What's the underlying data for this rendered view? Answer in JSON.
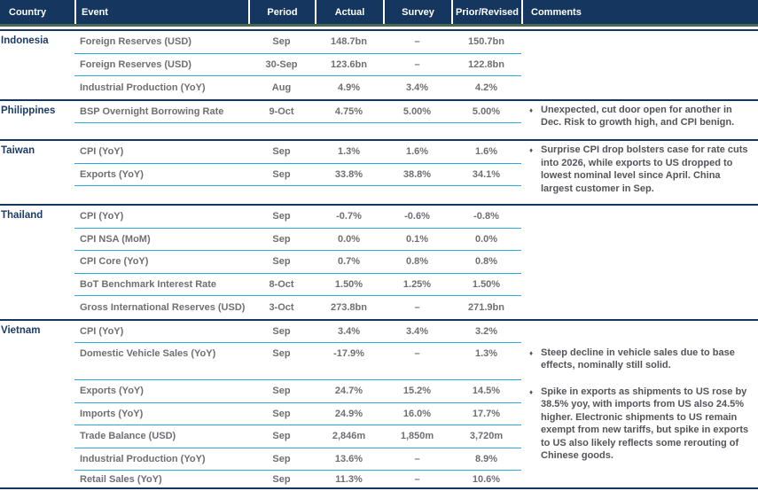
{
  "header": {
    "columns": [
      "Country",
      "Event",
      "Period",
      "Actual",
      "Survey",
      "Prior/Revised",
      "Comments"
    ]
  },
  "bullet": "♦",
  "colors": {
    "header_bg": "#14365f",
    "accent_green": "#486852",
    "row_rule_cyan": "#29abe2",
    "country_text": "#1d3c68",
    "value_text": "#6f6f73",
    "comment_text": "#54545a"
  },
  "sections": [
    {
      "country": "Indonesia",
      "rows": [
        {
          "event": "Foreign Reserves (USD)",
          "period": "Sep",
          "actual": "148.7bn",
          "survey": "–",
          "prior": "150.7bn"
        },
        {
          "event": "Foreign Reserves (USD)",
          "period": "30-Sep",
          "actual": "123.6bn",
          "survey": "–",
          "prior": "122.8bn"
        },
        {
          "event": "Industrial Production (YoY)",
          "period": "Aug",
          "actual": "4.9%",
          "survey": "3.4%",
          "prior": "4.2%"
        }
      ],
      "comments": []
    },
    {
      "country": "Philippines",
      "rows": [
        {
          "event": "BSP Overnight Borrowing Rate",
          "period": "9-Oct",
          "actual": "4.75%",
          "survey": "5.00%",
          "prior": "5.00%"
        }
      ],
      "comments": [
        {
          "text": "Unexpected, cut door open for another in Dec. Risk to growth high, and CPI benign."
        }
      ]
    },
    {
      "country": "Taiwan",
      "rows": [
        {
          "event": "CPI (YoY)",
          "period": "Sep",
          "actual": "1.3%",
          "survey": "1.6%",
          "prior": "1.6%"
        },
        {
          "event": "Exports (YoY)",
          "period": "Sep",
          "actual": "33.8%",
          "survey": "38.8%",
          "prior": "34.1%"
        }
      ],
      "comments": [
        {
          "text": "Surprise CPI drop bolsters case for rate cuts into 2026, while exports to US dropped to lowest nominal level since April. China largest customer in Sep."
        }
      ]
    },
    {
      "country": "Thailand",
      "rows": [
        {
          "event": "CPI (YoY)",
          "period": "Sep",
          "actual": "-0.7%",
          "survey": "-0.6%",
          "prior": "-0.8%"
        },
        {
          "event": "CPI NSA (MoM)",
          "period": "Sep",
          "actual": "0.0%",
          "survey": "0.1%",
          "prior": "0.0%"
        },
        {
          "event": "CPI Core (YoY)",
          "period": "Sep",
          "actual": "0.7%",
          "survey": "0.8%",
          "prior": "0.8%"
        },
        {
          "event": "BoT Benchmark Interest Rate",
          "period": "8-Oct",
          "actual": "1.50%",
          "survey": "1.25%",
          "prior": "1.50%"
        },
        {
          "event": "Gross International Reserves (USD)",
          "period": "3-Oct",
          "actual": "273.8bn",
          "survey": "–",
          "prior": "271.9bn"
        }
      ],
      "comments": []
    },
    {
      "country": "Vietnam",
      "rows": [
        {
          "event": "CPI (YoY)",
          "period": "Sep",
          "actual": "3.4%",
          "survey": "3.4%",
          "prior": "3.2%"
        },
        {
          "event": "Domestic Vehicle Sales (YoY)",
          "period": "Sep",
          "actual": "-17.9%",
          "survey": "–",
          "prior": "1.3%"
        },
        {
          "event": "Exports (YoY)",
          "period": "Sep",
          "actual": "24.7%",
          "survey": "15.2%",
          "prior": "14.5%"
        },
        {
          "event": "Imports (YoY)",
          "period": "Sep",
          "actual": "24.9%",
          "survey": "16.0%",
          "prior": "17.7%"
        },
        {
          "event": "Trade Balance (USD)",
          "period": "Sep",
          "actual": "2,846m",
          "survey": "1,850m",
          "prior": "3,720m"
        },
        {
          "event": "Industrial Production (YoY)",
          "period": "Sep",
          "actual": "13.6%",
          "survey": "–",
          "prior": "8.9%"
        },
        {
          "event": "Retail Sales (YoY)",
          "period": "Sep",
          "actual": "11.3%",
          "survey": "–",
          "prior": "10.6%"
        }
      ],
      "comments": [
        {
          "text": "Steep decline in vehicle sales due to base effects, nominally still solid."
        },
        {
          "text": "Spike in exports as shipments to US rose by 38.5% yoy, with imports from US also 24.5% higher. Electronic shipments to US remain exempt from new tariffs, but spike in exports to US also likely reflects some rerouting of Chinese goods."
        }
      ]
    }
  ],
  "chart_data": {
    "type": "table",
    "title": "",
    "columns": [
      "Country",
      "Event",
      "Period",
      "Actual",
      "Survey",
      "Prior/Revised",
      "Comments"
    ],
    "rows": [
      [
        "Indonesia",
        "Foreign Reserves (USD)",
        "Sep",
        "148.7bn",
        "–",
        "150.7bn",
        ""
      ],
      [
        "Indonesia",
        "Foreign Reserves (USD)",
        "30-Sep",
        "123.6bn",
        "–",
        "122.8bn",
        ""
      ],
      [
        "Indonesia",
        "Industrial Production (YoY)",
        "Aug",
        "4.9%",
        "3.4%",
        "4.2%",
        ""
      ],
      [
        "Philippines",
        "BSP Overnight Borrowing Rate",
        "9-Oct",
        "4.75%",
        "5.00%",
        "5.00%",
        "Unexpected, cut door open for another in Dec. Risk to growth high, and CPI benign."
      ],
      [
        "Taiwan",
        "CPI (YoY)",
        "Sep",
        "1.3%",
        "1.6%",
        "1.6%",
        "Surprise CPI drop bolsters case for rate cuts into 2026, while exports to US dropped to lowest nominal level since April. China largest customer in Sep."
      ],
      [
        "Taiwan",
        "Exports (YoY)",
        "Sep",
        "33.8%",
        "38.8%",
        "34.1%",
        ""
      ],
      [
        "Thailand",
        "CPI (YoY)",
        "Sep",
        "-0.7%",
        "-0.6%",
        "-0.8%",
        ""
      ],
      [
        "Thailand",
        "CPI NSA (MoM)",
        "Sep",
        "0.0%",
        "0.1%",
        "0.0%",
        ""
      ],
      [
        "Thailand",
        "CPI Core (YoY)",
        "Sep",
        "0.7%",
        "0.8%",
        "0.8%",
        ""
      ],
      [
        "Thailand",
        "BoT Benchmark Interest Rate",
        "8-Oct",
        "1.50%",
        "1.25%",
        "1.50%",
        ""
      ],
      [
        "Thailand",
        "Gross International Reserves (USD)",
        "3-Oct",
        "273.8bn",
        "–",
        "271.9bn",
        ""
      ],
      [
        "Vietnam",
        "CPI (YoY)",
        "Sep",
        "3.4%",
        "3.4%",
        "3.2%",
        ""
      ],
      [
        "Vietnam",
        "Domestic Vehicle Sales (YoY)",
        "Sep",
        "-17.9%",
        "–",
        "1.3%",
        "Steep decline in vehicle sales due to base effects, nominally still solid."
      ],
      [
        "Vietnam",
        "Exports (YoY)",
        "Sep",
        "24.7%",
        "15.2%",
        "14.5%",
        "Spike in exports as shipments to US rose by 38.5% yoy, with imports from US also 24.5% higher. Electronic shipments to US remain exempt from new tariffs, but spike in exports to US also likely reflects some rerouting of Chinese goods."
      ],
      [
        "Vietnam",
        "Imports (YoY)",
        "Sep",
        "24.9%",
        "16.0%",
        "17.7%",
        ""
      ],
      [
        "Vietnam",
        "Trade Balance (USD)",
        "Sep",
        "2,846m",
        "1,850m",
        "3,720m",
        ""
      ],
      [
        "Vietnam",
        "Industrial Production (YoY)",
        "Sep",
        "13.6%",
        "–",
        "8.9%",
        ""
      ],
      [
        "Vietnam",
        "Retail Sales (YoY)",
        "Sep",
        "11.3%",
        "–",
        "10.6%",
        ""
      ]
    ]
  }
}
